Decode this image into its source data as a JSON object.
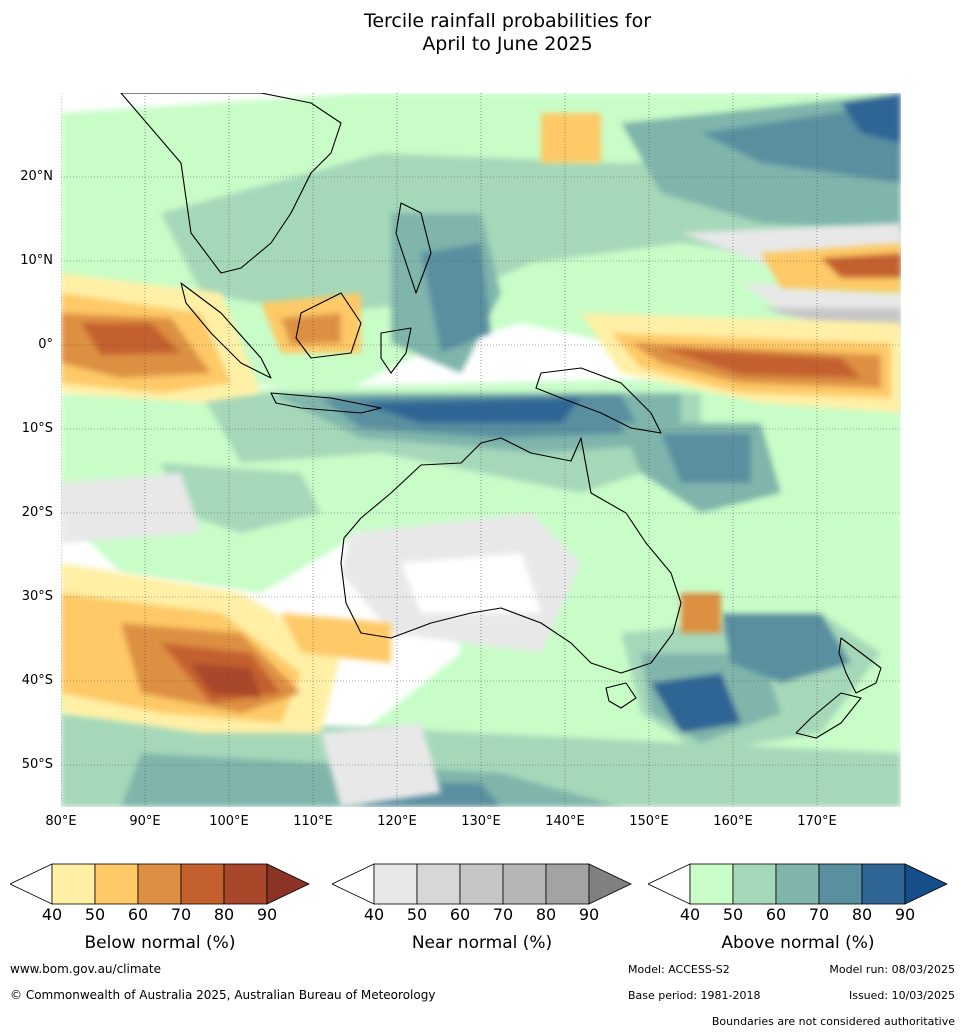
{
  "title_lines": [
    "Tercile rainfall probabilities for",
    "April to June 2025"
  ],
  "map": {
    "lon_range": [
      80,
      180
    ],
    "lat_range": [
      -55,
      30
    ],
    "lat_labels": [
      {
        "lat": 20,
        "text": "20°N"
      },
      {
        "lat": 10,
        "text": "10°N"
      },
      {
        "lat": 0,
        "text": "0°"
      },
      {
        "lat": -10,
        "text": "10°S"
      },
      {
        "lat": -20,
        "text": "20°S"
      },
      {
        "lat": -30,
        "text": "30°S"
      },
      {
        "lat": -40,
        "text": "40°S"
      },
      {
        "lat": -50,
        "text": "50°S"
      }
    ],
    "lon_labels": [
      {
        "lon": 80,
        "text": "80°E"
      },
      {
        "lon": 90,
        "text": "90°E"
      },
      {
        "lon": 100,
        "text": "100°E"
      },
      {
        "lon": 110,
        "text": "110°E"
      },
      {
        "lon": 120,
        "text": "120°E"
      },
      {
        "lon": 130,
        "text": "130°E"
      },
      {
        "lon": 140,
        "text": "140°E"
      },
      {
        "lon": 150,
        "text": "150°E"
      },
      {
        "lon": 160,
        "text": "160°E"
      },
      {
        "lon": 170,
        "text": "170°E"
      }
    ]
  },
  "legends": [
    {
      "title": "Below normal (%)",
      "ticks": [
        "40",
        "50",
        "60",
        "70",
        "80",
        "90"
      ],
      "colors": [
        "#ffffff",
        "#fff0a6",
        "#fec966",
        "#dd9043",
        "#c4602e",
        "#a8472a",
        "#8b3324"
      ]
    },
    {
      "title": "Near normal (%)",
      "ticks": [
        "40",
        "50",
        "60",
        "70",
        "80",
        "90"
      ],
      "colors": [
        "#ffffff",
        "#e8e8e8",
        "#d7d7d7",
        "#c6c6c6",
        "#b6b6b6",
        "#a3a3a3",
        "#808080"
      ]
    },
    {
      "title": "Above normal (%)",
      "ticks": [
        "40",
        "50",
        "60",
        "70",
        "80",
        "90"
      ],
      "colors": [
        "#ffffff",
        "#c8fdc8",
        "#a5d8b9",
        "#7fb5ab",
        "#5a8fa0",
        "#2f6595",
        "#164e8a"
      ]
    }
  ],
  "footer": {
    "website": "www.bom.gov.au/climate",
    "copyright": "© Commonwealth of Australia 2025, Australian Bureau of Meteorology",
    "model": "Model: ACCESS-S2",
    "model_run": "Model run: 08/03/2025",
    "base_period": "Base period: 1981-2018",
    "issued": "Issued: 10/03/2025",
    "boundaries": "Boundaries are not considered authoritative"
  }
}
